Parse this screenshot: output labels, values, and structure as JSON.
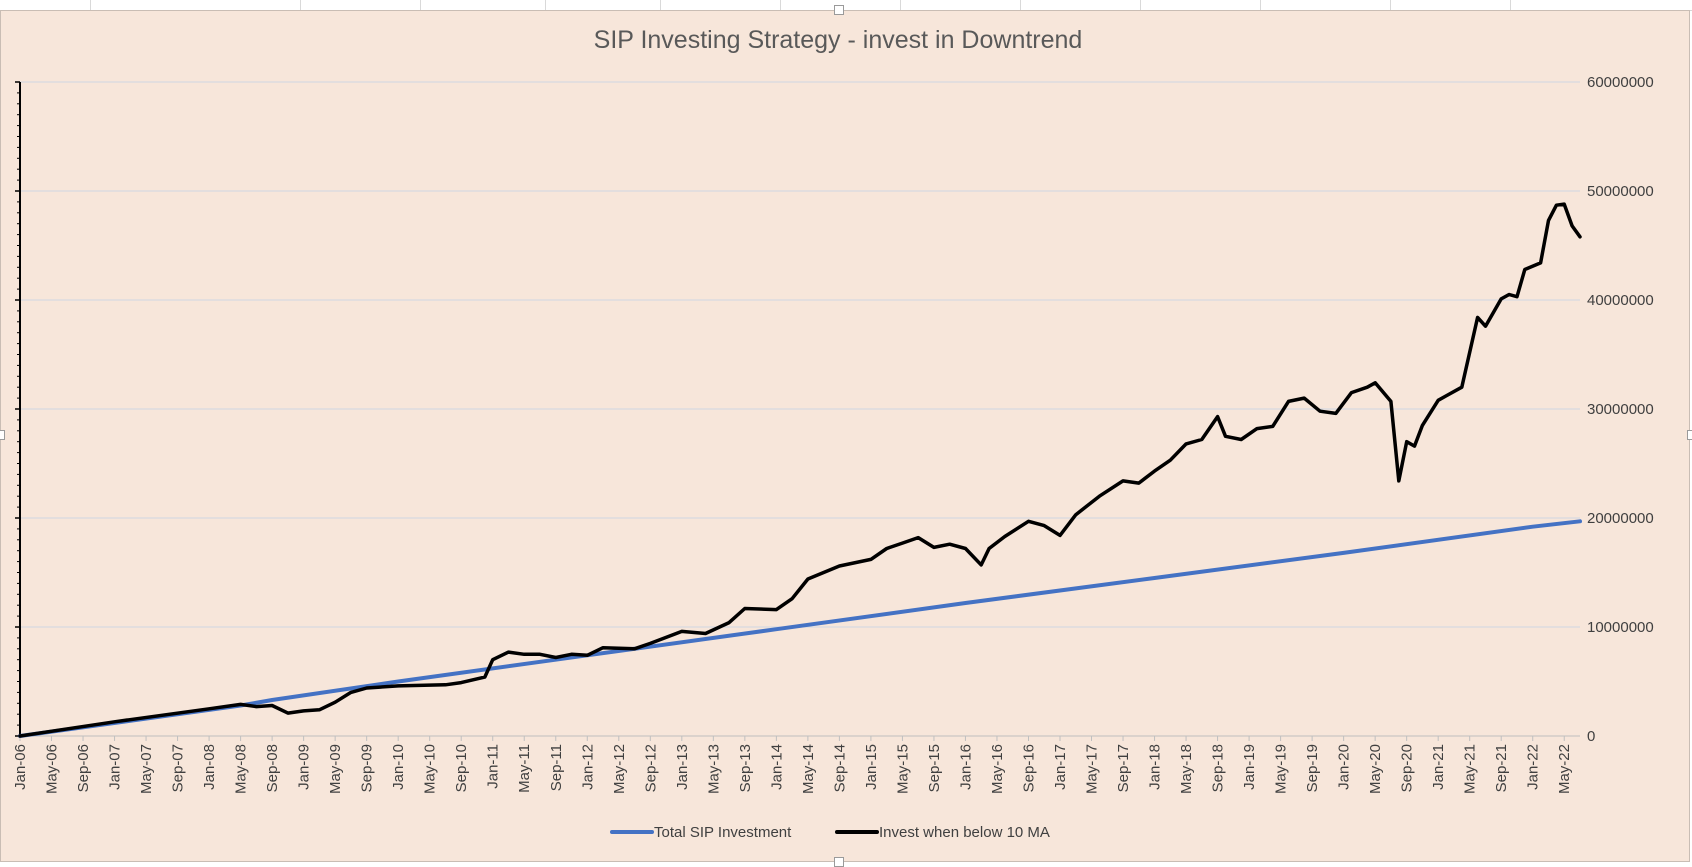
{
  "chart_data": {
    "type": "line",
    "title": "SIP Investing Strategy  - invest in Downtrend",
    "xlabel": "",
    "ylabel": "",
    "ylim": [
      0,
      60000000
    ],
    "y_ticks": [
      0,
      10000000,
      20000000,
      30000000,
      40000000,
      50000000,
      60000000
    ],
    "y_tick_labels": [
      "0",
      "10000000",
      "20000000",
      "30000000",
      "40000000",
      "50000000",
      "60000000"
    ],
    "x_tick_labels": [
      "Jan-06",
      "May-06",
      "Sep-06",
      "Jan-07",
      "May-07",
      "Sep-07",
      "Jan-08",
      "May-08",
      "Sep-08",
      "Jan-09",
      "May-09",
      "Sep-09",
      "Jan-10",
      "May-10",
      "Sep-10",
      "Jan-11",
      "May-11",
      "Sep-11",
      "Jan-12",
      "May-12",
      "Sep-12",
      "Jan-13",
      "May-13",
      "Sep-13",
      "Jan-14",
      "May-14",
      "Sep-14",
      "Jan-15",
      "May-15",
      "Sep-15",
      "Jan-16",
      "May-16",
      "Sep-16",
      "Jan-17",
      "May-17",
      "Sep-17",
      "Jan-18",
      "May-18",
      "Sep-18",
      "Jan-19",
      "May-19",
      "Sep-19",
      "Jan-20",
      "May-20",
      "Sep-20",
      "Jan-21",
      "May-21",
      "Sep-21",
      "Jan-22",
      "May-22"
    ],
    "x_start": "Jan-06",
    "x_end": "Jul-22",
    "grid": true,
    "legend_position": "bottom",
    "series": [
      {
        "name": "Total SIP Investment",
        "color": "#4472c4",
        "points": [
          [
            "Jan-06",
            0
          ],
          [
            "May-08",
            2800000
          ],
          [
            "Sep-08",
            3300000
          ],
          [
            "Jan-10",
            5000000
          ],
          [
            "Jan-12",
            7400000
          ],
          [
            "Jan-14",
            9800000
          ],
          [
            "Jan-16",
            12200000
          ],
          [
            "Jan-18",
            14500000
          ],
          [
            "Jan-20",
            16800000
          ],
          [
            "Jan-22",
            19200000
          ],
          [
            "Jul-22",
            19700000
          ]
        ]
      },
      {
        "name": "Invest when below 10 MA",
        "color": "#000000",
        "points": [
          [
            "Jan-06",
            0
          ],
          [
            "Jan-07",
            1300000
          ],
          [
            "Jan-08",
            2500000
          ],
          [
            "May-08",
            2900000
          ],
          [
            "Jul-08",
            2700000
          ],
          [
            "Sep-08",
            2800000
          ],
          [
            "Nov-08",
            2100000
          ],
          [
            "Jan-09",
            2300000
          ],
          [
            "Mar-09",
            2400000
          ],
          [
            "May-09",
            3100000
          ],
          [
            "Jul-09",
            4000000
          ],
          [
            "Sep-09",
            4400000
          ],
          [
            "Jan-10",
            4600000
          ],
          [
            "Jul-10",
            4700000
          ],
          [
            "Sep-10",
            4900000
          ],
          [
            "Dec-10",
            5400000
          ],
          [
            "Jan-11",
            7000000
          ],
          [
            "Mar-11",
            7700000
          ],
          [
            "May-11",
            7500000
          ],
          [
            "Jul-11",
            7500000
          ],
          [
            "Sep-11",
            7200000
          ],
          [
            "Nov-11",
            7500000
          ],
          [
            "Jan-12",
            7400000
          ],
          [
            "Mar-12",
            8100000
          ],
          [
            "Jul-12",
            8000000
          ],
          [
            "Sep-12",
            8500000
          ],
          [
            "Jan-13",
            9600000
          ],
          [
            "Apr-13",
            9400000
          ],
          [
            "Jul-13",
            10400000
          ],
          [
            "Sep-13",
            11700000
          ],
          [
            "Jan-14",
            11600000
          ],
          [
            "Mar-14",
            12600000
          ],
          [
            "May-14",
            14400000
          ],
          [
            "Sep-14",
            15600000
          ],
          [
            "Jan-15",
            16200000
          ],
          [
            "Mar-15",
            17200000
          ],
          [
            "May-15",
            17700000
          ],
          [
            "Jul-15",
            18200000
          ],
          [
            "Sep-15",
            17300000
          ],
          [
            "Nov-15",
            17600000
          ],
          [
            "Jan-16",
            17200000
          ],
          [
            "Mar-16",
            15700000
          ],
          [
            "Apr-16",
            17200000
          ],
          [
            "Jun-16",
            18300000
          ],
          [
            "Sep-16",
            19700000
          ],
          [
            "Nov-16",
            19300000
          ],
          [
            "Jan-17",
            18400000
          ],
          [
            "Mar-17",
            20300000
          ],
          [
            "Jun-17",
            22000000
          ],
          [
            "Sep-17",
            23400000
          ],
          [
            "Nov-17",
            23200000
          ],
          [
            "Jan-18",
            24300000
          ],
          [
            "Mar-18",
            25300000
          ],
          [
            "May-18",
            26800000
          ],
          [
            "Jul-18",
            27200000
          ],
          [
            "Sep-18",
            29300000
          ],
          [
            "Oct-18",
            27500000
          ],
          [
            "Dec-18",
            27200000
          ],
          [
            "Feb-19",
            28200000
          ],
          [
            "Apr-19",
            28400000
          ],
          [
            "Jun-19",
            30700000
          ],
          [
            "Aug-19",
            31000000
          ],
          [
            "Oct-19",
            29800000
          ],
          [
            "Dec-19",
            29600000
          ],
          [
            "Feb-20",
            31500000
          ],
          [
            "Apr-20",
            32000000
          ],
          [
            "May-20",
            32400000
          ],
          [
            "Jul-20",
            30700000
          ],
          [
            "Aug-20",
            23400000
          ],
          [
            "Sep-20",
            27000000
          ],
          [
            "Oct-20",
            26600000
          ],
          [
            "Nov-20",
            28500000
          ],
          [
            "Jan-21",
            30800000
          ],
          [
            "Feb-21",
            31200000
          ],
          [
            "Apr-21",
            32000000
          ],
          [
            "Jun-21",
            38400000
          ],
          [
            "Jul-21",
            37600000
          ],
          [
            "Sep-21",
            40100000
          ],
          [
            "Oct-21",
            40500000
          ],
          [
            "Nov-21",
            40300000
          ],
          [
            "Dec-21",
            42800000
          ],
          [
            "Feb-22",
            43400000
          ],
          [
            "Mar-22",
            47300000
          ],
          [
            "Apr-22",
            48700000
          ],
          [
            "May-22",
            48800000
          ],
          [
            "Jun-22",
            46800000
          ],
          [
            "Jul-22",
            45800000
          ]
        ]
      }
    ]
  }
}
